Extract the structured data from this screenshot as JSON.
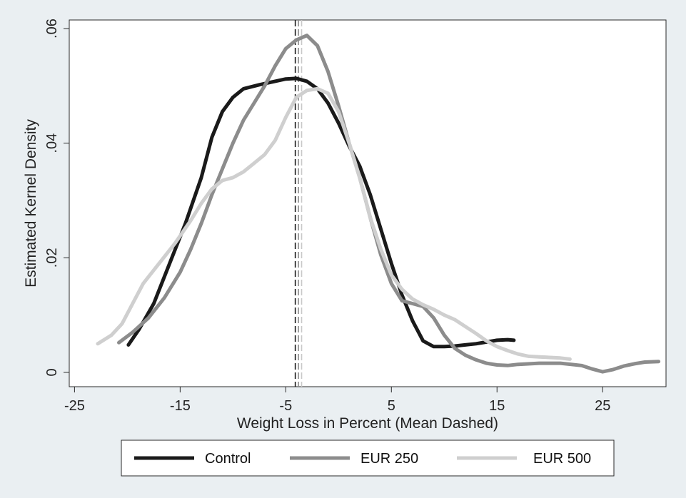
{
  "chart_data": {
    "type": "line",
    "xlabel": "Weight Loss in Percent (Mean Dashed)",
    "ylabel": "Estimated Kernel Density",
    "xlim": [
      -25.5,
      31
    ],
    "ylim": [
      -0.0025,
      0.0615
    ],
    "x_ticks": [
      -25,
      -15,
      -5,
      5,
      15,
      25
    ],
    "x_tick_labels": [
      "-25",
      "-15",
      "-5",
      "5",
      "15",
      "25"
    ],
    "y_ticks": [
      0,
      0.02,
      0.04,
      0.06
    ],
    "y_tick_labels": [
      "0",
      ".02",
      ".04",
      ".06"
    ],
    "grid": false,
    "legend_position": "bottom",
    "mean_lines": [
      {
        "series": "Control",
        "x": -4.1,
        "color": "#1a1a1a"
      },
      {
        "series": "EUR 250",
        "x": -3.8,
        "color": "#8c8c8c"
      },
      {
        "series": "EUR 500",
        "x": -3.5,
        "color": "#c8c8c8"
      }
    ],
    "series": [
      {
        "name": "Control",
        "color": "#1a1a1a",
        "points": [
          [
            -19.9,
            0.0048
          ],
          [
            -18.9,
            0.0075
          ],
          [
            -17.5,
            0.012
          ],
          [
            -16,
            0.019
          ],
          [
            -14.5,
            0.026
          ],
          [
            -13,
            0.034
          ],
          [
            -12,
            0.041
          ],
          [
            -11,
            0.0455
          ],
          [
            -10,
            0.048
          ],
          [
            -9,
            0.0495
          ],
          [
            -7.5,
            0.0502
          ],
          [
            -6,
            0.0508
          ],
          [
            -5,
            0.0512
          ],
          [
            -4,
            0.0513
          ],
          [
            -3,
            0.0508
          ],
          [
            -2,
            0.0495
          ],
          [
            -1,
            0.047
          ],
          [
            0,
            0.0435
          ],
          [
            1,
            0.0395
          ],
          [
            2,
            0.036
          ],
          [
            3,
            0.031
          ],
          [
            4,
            0.025
          ],
          [
            5,
            0.019
          ],
          [
            6,
            0.0135
          ],
          [
            7,
            0.009
          ],
          [
            8,
            0.0055
          ],
          [
            9,
            0.0045
          ],
          [
            10,
            0.0045
          ],
          [
            11,
            0.0046
          ],
          [
            12,
            0.0048
          ],
          [
            13,
            0.005
          ],
          [
            14,
            0.0053
          ],
          [
            15,
            0.0056
          ],
          [
            16,
            0.0057
          ],
          [
            16.6,
            0.0056
          ]
        ]
      },
      {
        "name": "EUR 250",
        "color": "#8c8c8c",
        "points": [
          [
            -20.8,
            0.0052
          ],
          [
            -19.5,
            0.007
          ],
          [
            -18,
            0.0095
          ],
          [
            -16.5,
            0.013
          ],
          [
            -15,
            0.0175
          ],
          [
            -14,
            0.0215
          ],
          [
            -13,
            0.026
          ],
          [
            -12,
            0.031
          ],
          [
            -11,
            0.0355
          ],
          [
            -10,
            0.04
          ],
          [
            -9,
            0.044
          ],
          [
            -8,
            0.047
          ],
          [
            -7,
            0.05
          ],
          [
            -6,
            0.0535
          ],
          [
            -5,
            0.0565
          ],
          [
            -4,
            0.058
          ],
          [
            -3,
            0.0588
          ],
          [
            -2,
            0.057
          ],
          [
            -1,
            0.0525
          ],
          [
            0,
            0.0465
          ],
          [
            1,
            0.04
          ],
          [
            2,
            0.034
          ],
          [
            3,
            0.027
          ],
          [
            4,
            0.0205
          ],
          [
            5,
            0.0155
          ],
          [
            6,
            0.0125
          ],
          [
            7,
            0.012
          ],
          [
            8,
            0.0115
          ],
          [
            9,
            0.0095
          ],
          [
            10,
            0.0065
          ],
          [
            11,
            0.0042
          ],
          [
            12,
            0.003
          ],
          [
            13,
            0.0022
          ],
          [
            14,
            0.0016
          ],
          [
            15,
            0.0013
          ],
          [
            16,
            0.0012
          ],
          [
            17,
            0.0014
          ],
          [
            19,
            0.0016
          ],
          [
            21,
            0.0016
          ],
          [
            23,
            0.0012
          ],
          [
            24,
            0.0006
          ],
          [
            25,
            0.0001
          ],
          [
            26,
            0.0005
          ],
          [
            27,
            0.0011
          ],
          [
            28,
            0.0015
          ],
          [
            29,
            0.0018
          ],
          [
            30.3,
            0.0019
          ]
        ]
      },
      {
        "name": "EUR 500",
        "color": "#cfcfcf",
        "points": [
          [
            -22.8,
            0.005
          ],
          [
            -21.5,
            0.0065
          ],
          [
            -20.5,
            0.0085
          ],
          [
            -19.5,
            0.012
          ],
          [
            -18.5,
            0.0155
          ],
          [
            -17,
            0.019
          ],
          [
            -15.5,
            0.0225
          ],
          [
            -14,
            0.0265
          ],
          [
            -13,
            0.0295
          ],
          [
            -12,
            0.032
          ],
          [
            -11,
            0.0335
          ],
          [
            -10,
            0.034
          ],
          [
            -9,
            0.035
          ],
          [
            -8,
            0.0365
          ],
          [
            -7,
            0.038
          ],
          [
            -6,
            0.0405
          ],
          [
            -5,
            0.0445
          ],
          [
            -4,
            0.048
          ],
          [
            -3,
            0.0492
          ],
          [
            -2,
            0.0495
          ],
          [
            -1,
            0.0487
          ],
          [
            0,
            0.0455
          ],
          [
            1,
            0.04
          ],
          [
            2,
            0.034
          ],
          [
            3,
            0.027
          ],
          [
            4,
            0.0215
          ],
          [
            5,
            0.017
          ],
          [
            6,
            0.0145
          ],
          [
            7,
            0.0128
          ],
          [
            8,
            0.0118
          ],
          [
            9,
            0.011
          ],
          [
            10,
            0.01
          ],
          [
            11,
            0.0092
          ],
          [
            12,
            0.008
          ],
          [
            13,
            0.0068
          ],
          [
            14,
            0.0055
          ],
          [
            15,
            0.0045
          ],
          [
            16,
            0.0038
          ],
          [
            17,
            0.0032
          ],
          [
            18,
            0.0028
          ],
          [
            19,
            0.0027
          ],
          [
            20,
            0.0026
          ],
          [
            21,
            0.0025
          ],
          [
            21.9,
            0.0023
          ]
        ]
      }
    ]
  }
}
